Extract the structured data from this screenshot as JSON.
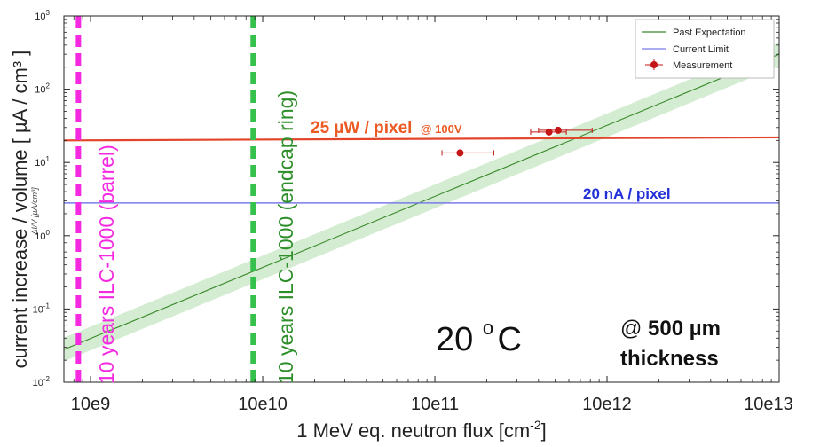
{
  "chart_data": {
    "type": "line",
    "title": "",
    "xlabel_main": "1 MeV eq. neutron flux [cm",
    "xlabel_sup": "-2",
    "xlabel_end": "]",
    "ylabel": "current increase / volume [ µA / cm³ ]",
    "ylabel_small": "ΔI/V   [µA/cm³]",
    "x_scale": "log",
    "y_scale": "log",
    "xlim": [
      700000000.0,
      10000000000000.0
    ],
    "ylim": [
      0.01,
      1000
    ],
    "x_ticks": [
      {
        "value": 1000000000.0,
        "label": "10e9"
      },
      {
        "value": 10000000000.0,
        "label": "10e10"
      },
      {
        "value": 100000000000.0,
        "label": "10e11"
      },
      {
        "value": 1000000000000.0,
        "label": "10e12"
      },
      {
        "value": 10000000000000.0,
        "label": "10e13"
      }
    ],
    "y_ticks": [
      {
        "value": 1000,
        "base": "10",
        "exp": "3"
      },
      {
        "value": 100,
        "base": "10",
        "exp": "2"
      },
      {
        "value": 10,
        "base": "10",
        "exp": "1"
      },
      {
        "value": 1,
        "base": "10",
        "exp": "0"
      },
      {
        "value": 0.1,
        "base": "10",
        "exp": "-1"
      },
      {
        "value": 0.01,
        "base": "10",
        "exp": "-2"
      }
    ],
    "series": [
      {
        "name": "Past Expectation",
        "color": "#3a8a2c",
        "band_color": "#9fd49a",
        "points": [
          [
            700000000.0,
            0.028
          ],
          [
            10000000000000.0,
            300
          ]
        ],
        "band_factor": 1.45
      },
      {
        "name": "Current Limit",
        "color": "#7b7bea",
        "points": [
          [
            700000000.0,
            2.8
          ],
          [
            10000000000000.0,
            2.8
          ]
        ]
      },
      {
        "name": "25 µW / pixel limit",
        "color": "#e2452a",
        "points": [
          [
            700000000.0,
            20
          ],
          [
            10000000000000.0,
            22
          ]
        ]
      }
    ],
    "measurements": {
      "name": "Measurement",
      "color": "#c41616",
      "points": [
        {
          "x": 140000000000.0,
          "y": 13.5,
          "xlo": 110000000000.0,
          "xhi": 220000000000.0
        },
        {
          "x": 460000000000.0,
          "y": 26,
          "xlo": 360000000000.0,
          "xhi": 580000000000.0
        },
        {
          "x": 520000000000.0,
          "y": 27.5,
          "xlo": 400000000000.0,
          "xhi": 820000000000.0
        }
      ]
    },
    "vlines": [
      {
        "x": 850000000.0,
        "color": "#f52ae0",
        "label": "10 years ILC-1000 (barrel)"
      },
      {
        "x": 8800000000.0,
        "color": "#36c14c",
        "label": "10 years ILC-1000 (endcap ring)",
        "label_color": "#2e8f2a"
      }
    ],
    "legend": {
      "position": "top-right",
      "entries": [
        "Past Expectation",
        "Current Limit",
        "Measurement"
      ]
    },
    "annotations": {
      "power": {
        "main": "25 µW / pixel",
        "small": "@ 100V",
        "color": "#ec5a24"
      },
      "current": {
        "text": "20 nA / pixel",
        "color": "#2230d8"
      },
      "temperature": {
        "number": "20 ",
        "sup": "o",
        "unit": "C"
      },
      "thickness": {
        "prefix": "@ ",
        "value": "500 µm",
        "line2": "thickness"
      }
    }
  }
}
